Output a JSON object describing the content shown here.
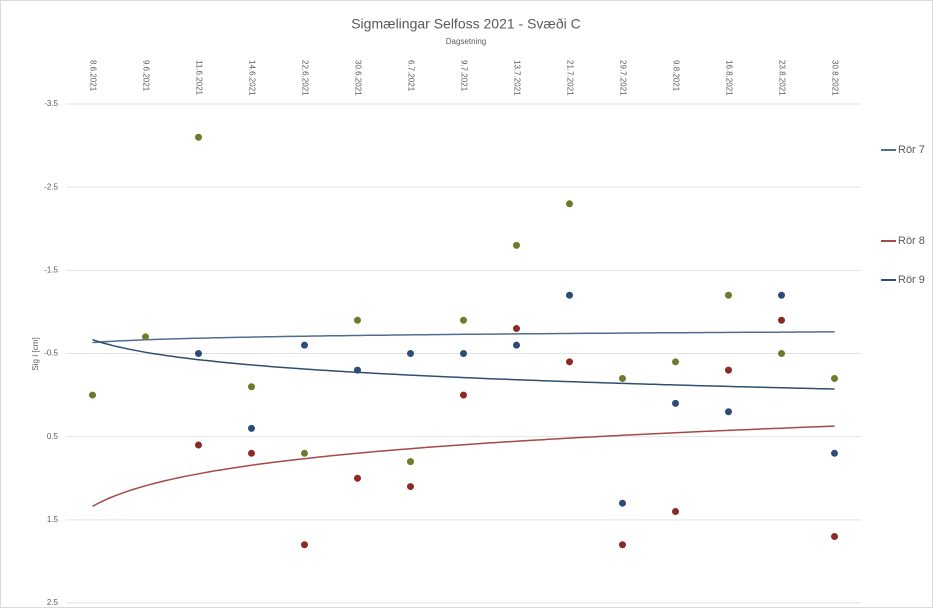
{
  "chart_data": {
    "type": "scatter",
    "title": "Sigmælingar Selfoss 2021 - Svæði C",
    "x_label": "Dagsetning",
    "y_label": "Sig í [cm]",
    "categories": [
      "8.6.2021",
      "9.6.2021",
      "11.6.2021",
      "14.6.2021",
      "22.6.2021",
      "30.6.2021",
      "6.7.2021",
      "9.7.2021",
      "13.7.2021",
      "21.7.2021",
      "29.7.2021",
      "9.8.2021",
      "16.8.2021",
      "23.8.2021",
      "30.8.2021"
    ],
    "series": [
      {
        "name": "Rör 7",
        "color": "#6b7d2c",
        "trend_color": "#4f6d8f",
        "values": [
          0.0,
          -0.7,
          -3.1,
          -0.1,
          0.7,
          -0.9,
          0.8,
          -0.9,
          -1.8,
          -2.3,
          -0.2,
          -0.4,
          -1.2,
          -0.5,
          -0.2
        ]
      },
      {
        "name": "Rör 8",
        "color": "#8b2b27",
        "trend_color": "#a54a48",
        "values": [
          null,
          null,
          0.6,
          0.7,
          1.8,
          1.0,
          1.1,
          0.0,
          -0.8,
          -0.4,
          1.8,
          1.4,
          -0.3,
          -0.9,
          1.7
        ]
      },
      {
        "name": "Rör 9",
        "color": "#2d4d76",
        "trend_color": "#2e4f70",
        "values": [
          null,
          null,
          -0.5,
          0.4,
          -0.6,
          -0.3,
          -0.5,
          -0.5,
          -0.6,
          -1.2,
          1.3,
          0.1,
          0.2,
          -1.2,
          0.7
        ]
      }
    ],
    "trendline": "logarithmic",
    "ylim": [
      -3.5,
      2.5
    ],
    "y_reversed": true,
    "yticks": [
      -3.5,
      -2.5,
      -1.5,
      -0.5,
      0.5,
      1.5,
      2.5
    ],
    "grid": true,
    "legend": "right"
  }
}
